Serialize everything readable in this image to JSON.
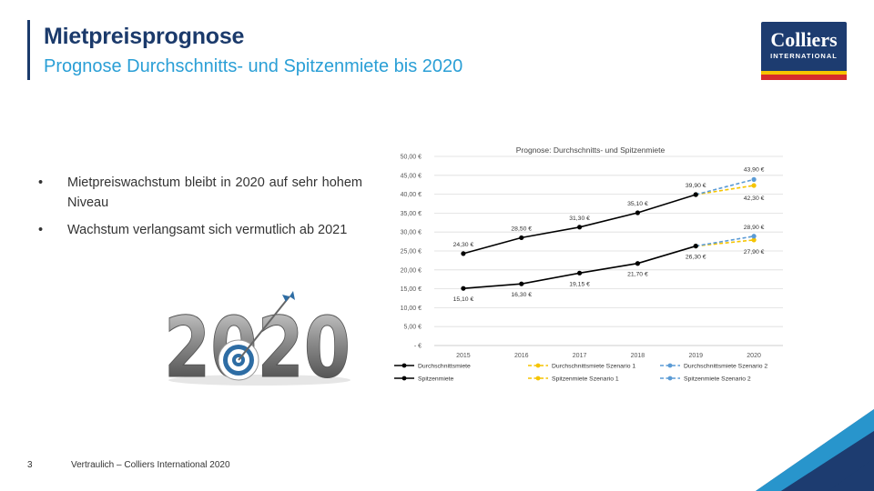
{
  "header": {
    "title": "Mietpreisprognose",
    "subtitle": "Prognose Durchschnitts- und Spitzenmiete bis 2020"
  },
  "logo": {
    "name": "Colliers",
    "sub": "INTERNATIONAL"
  },
  "bullets": [
    {
      "marker": "•",
      "text": "Mietpreiswachstum bleibt in 2020 auf sehr hohem Niveau"
    },
    {
      "marker": "•",
      "text": "Wachstum verlangsamt sich vermutlich ab 2021"
    }
  ],
  "image_2020": {
    "text": "2020"
  },
  "footer": {
    "page": "3",
    "text": "Vertraulich – Colliers International 2020"
  },
  "colors": {
    "navy": "#1b3a6b",
    "cyan": "#2a9fd6",
    "black": "#000000",
    "yellow": "#f5c400",
    "blue": "#5b9bd5"
  },
  "chart_data": {
    "type": "line",
    "title": "Prognose: Durchschnitts- und Spitzenmiete",
    "x": [
      "2015",
      "2016",
      "2017",
      "2018",
      "2019",
      "2020"
    ],
    "ylim": [
      0,
      50
    ],
    "yticks": [
      "- €",
      "5,00 €",
      "10,00 €",
      "15,00 €",
      "20,00 €",
      "25,00 €",
      "30,00 €",
      "35,00 €",
      "40,00 €",
      "45,00 €",
      "50,00 €"
    ],
    "grid": true,
    "legend_position": "bottom",
    "series": [
      {
        "name": "Durchschnittsmiete",
        "values": [
          15.1,
          16.3,
          19.15,
          21.7,
          26.3,
          null
        ],
        "labels": [
          "15,10 €",
          "16,30 €",
          "19,15 €",
          "21,70 €",
          "26,30 €",
          null
        ],
        "color": "#000000",
        "style": "solid"
      },
      {
        "name": "Spitzenmiete",
        "values": [
          24.3,
          28.5,
          31.3,
          35.1,
          39.9,
          null
        ],
        "labels": [
          "24,30 €",
          "28,50 €",
          "31,30 €",
          "35,10 €",
          "39,90 €",
          null
        ],
        "color": "#000000",
        "style": "solid"
      },
      {
        "name": "Durchschnittsmiete Szenario 1",
        "values": [
          null,
          null,
          null,
          null,
          26.3,
          27.9
        ],
        "labels": [
          null,
          null,
          null,
          null,
          null,
          "27,90 €"
        ],
        "color": "#f5c400",
        "style": "dashed"
      },
      {
        "name": "Spitzenmiete Szenario 1",
        "values": [
          null,
          null,
          null,
          null,
          39.9,
          42.3
        ],
        "labels": [
          null,
          null,
          null,
          null,
          null,
          "42,30 €"
        ],
        "color": "#f5c400",
        "style": "dashed"
      },
      {
        "name": "Durchschnittsmiete Szenario 2",
        "values": [
          null,
          null,
          null,
          null,
          26.3,
          28.9
        ],
        "labels": [
          null,
          null,
          null,
          null,
          null,
          "28,90 €"
        ],
        "color": "#5b9bd5",
        "style": "dashed"
      },
      {
        "name": "Spitzenmiete Szenario 2",
        "values": [
          null,
          null,
          null,
          null,
          39.9,
          43.9
        ],
        "labels": [
          null,
          null,
          null,
          null,
          null,
          "43,90 €"
        ],
        "color": "#5b9bd5",
        "style": "dashed"
      }
    ],
    "legend_order": [
      0,
      2,
      4,
      1,
      3,
      5
    ]
  }
}
